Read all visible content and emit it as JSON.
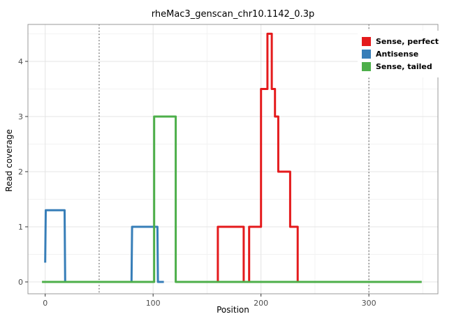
{
  "chart_data": {
    "type": "line",
    "title": "rheMac3_genscan_chr10.1142_0.3p",
    "xlabel": "Position",
    "ylabel": "Read coverage",
    "xlim": [
      -16,
      364
    ],
    "ylim": [
      -0.215,
      4.67
    ],
    "x_ticks": [
      0,
      100,
      200,
      300
    ],
    "y_ticks": [
      0,
      1,
      2,
      3,
      4
    ],
    "grid": true,
    "legend_position": "top-right",
    "vlines": {
      "positions": [
        50,
        300
      ],
      "style": "dotted",
      "color": "#3a3a3a"
    },
    "panel": {
      "background": "#ffffff",
      "border_color": "#999999",
      "major_grid_color": "#e4e4e4",
      "minor_grid_color": "#f2f2f2"
    },
    "series": [
      {
        "name": "Sense, perfect",
        "color": "#E41A1C",
        "points": [
          [
            150,
            0
          ],
          [
            160,
            0
          ],
          [
            160,
            1
          ],
          [
            184,
            1
          ],
          [
            184,
            0
          ],
          [
            189,
            0
          ],
          [
            189,
            1
          ],
          [
            200,
            1
          ],
          [
            200,
            3.5
          ],
          [
            206,
            3.5
          ],
          [
            206,
            4.5
          ],
          [
            210,
            4.5
          ],
          [
            210,
            3.5
          ],
          [
            213,
            3.5
          ],
          [
            213,
            3
          ],
          [
            216,
            3
          ],
          [
            216,
            2
          ],
          [
            227,
            2
          ],
          [
            227,
            1
          ],
          [
            234,
            1
          ],
          [
            234,
            0
          ],
          [
            239,
            0
          ]
        ]
      },
      {
        "name": "Antisense",
        "color": "#377EB8",
        "points": [
          [
            0,
            0.35
          ],
          [
            0.5,
            1.3
          ],
          [
            18,
            1.3
          ],
          [
            18.5,
            0
          ],
          [
            80,
            0
          ],
          [
            80.5,
            1
          ],
          [
            104,
            1
          ],
          [
            104.5,
            0
          ],
          [
            110,
            0
          ]
        ]
      },
      {
        "name": "Sense, tailed",
        "color": "#4DAF4A",
        "points": [
          [
            -3,
            0
          ],
          [
            101,
            0
          ],
          [
            101,
            3
          ],
          [
            121,
            3
          ],
          [
            121,
            0
          ],
          [
            349,
            0
          ]
        ]
      }
    ]
  }
}
